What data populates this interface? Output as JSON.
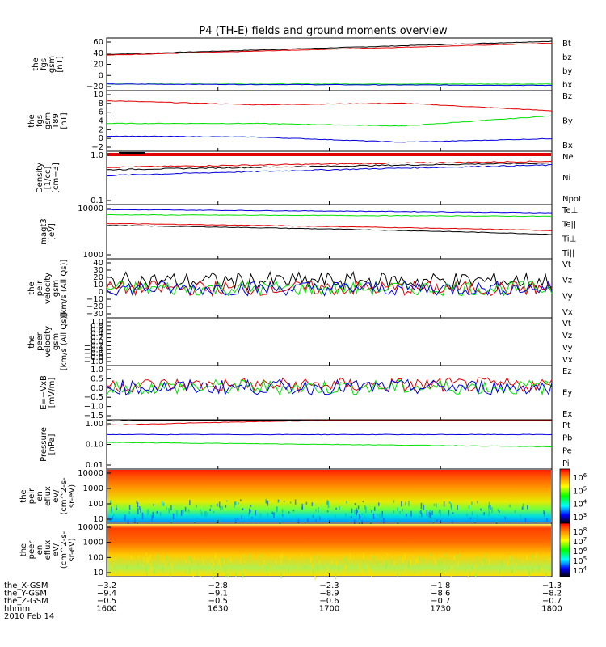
{
  "title": "P4 (TH-E) fields and ground moments overview",
  "colors": {
    "black": "#000000",
    "red": "#e00000",
    "green": "#00e000",
    "blue": "#0000dd"
  },
  "panels": [
    {
      "id": "fgs",
      "ylabel": [
        "the",
        "fgs",
        "gsm",
        "[nT]"
      ],
      "yticks": [
        "60",
        "40",
        "20",
        "0",
        "−20"
      ],
      "legend": [
        {
          "label": "Bt",
          "color": "#000000"
        },
        {
          "label": "bz",
          "color": "#e00000"
        },
        {
          "label": "by",
          "color": "#00e000"
        },
        {
          "label": "bx",
          "color": "#0000dd"
        }
      ]
    },
    {
      "id": "t89",
      "ylabel": [
        "the",
        "fgs",
        "gsm",
        "T89",
        "[nT]"
      ],
      "yticks": [
        "10",
        "8",
        "6",
        "4",
        "2",
        "0",
        "−2"
      ],
      "legend": [
        {
          "label": "Bz",
          "color": "#e00000"
        },
        {
          "label": "By",
          "color": "#00e000"
        },
        {
          "label": "Bx",
          "color": "#0000dd"
        }
      ]
    },
    {
      "id": "density",
      "ylabel": [
        "Density",
        "[1/cc]",
        "[cm−3]"
      ],
      "yticks": [
        "1.0",
        "0.1"
      ],
      "legend": [
        {
          "label": "Ne",
          "color": "#e00000"
        },
        {
          "label": "Ni",
          "color": "#000000"
        },
        {
          "label": "Npot",
          "color": "#0000dd"
        }
      ]
    },
    {
      "id": "temp",
      "ylabel": [
        "magt3",
        "[eV]"
      ],
      "yticks": [
        "10000",
        "1000"
      ],
      "legend": [
        {
          "label": "Te⊥",
          "color": "#e00000"
        },
        {
          "label": "Te||",
          "color": "#000000"
        },
        {
          "label": "Ti⊥",
          "color": "#0000dd"
        },
        {
          "label": "Ti||",
          "color": "#00e000"
        }
      ]
    },
    {
      "id": "peir_vel",
      "ylabel": [
        "the",
        "peir",
        "velocity",
        "gsm",
        "[km/s (All Qs)]"
      ],
      "yticks": [
        "40",
        "30",
        "20",
        "10",
        "0",
        "−10",
        "−20",
        "−30"
      ],
      "legend": [
        {
          "label": "Vt",
          "color": "#000000"
        },
        {
          "label": "Vz",
          "color": "#e00000"
        },
        {
          "label": "Vy",
          "color": "#00e000"
        },
        {
          "label": "Vx",
          "color": "#0000dd"
        }
      ]
    },
    {
      "id": "peer_vel",
      "ylabel": [
        "the",
        "peer",
        "velocity",
        "gsm",
        "[km/s (All Qs)]"
      ],
      "yticks": [
        "1.0",
        "0.8",
        "0.6",
        "0.4",
        "0.2",
        "0.0",
        "−0.2",
        "−0.4",
        "−0.6",
        "−0.8",
        "−1.0"
      ],
      "legend": [
        {
          "label": "Vt",
          "color": "#000000"
        },
        {
          "label": "Vz",
          "color": "#e00000"
        },
        {
          "label": "Vy",
          "color": "#00e000"
        },
        {
          "label": "Vx",
          "color": "#0000dd"
        }
      ]
    },
    {
      "id": "efield",
      "ylabel": [
        "E=−VxB",
        "[mV/m]"
      ],
      "yticks": [
        "1.0",
        "0.5",
        "0.0",
        "−0.5",
        "−1.0",
        "−1.5"
      ],
      "legend": [
        {
          "label": "Ez",
          "color": "#e00000"
        },
        {
          "label": "Ey",
          "color": "#00e000"
        },
        {
          "label": "Ex",
          "color": "#0000dd"
        }
      ]
    },
    {
      "id": "pressure",
      "ylabel": [
        "Pressure",
        "[nPa]"
      ],
      "yticks": [
        "1.00",
        "0.10",
        "0.01"
      ],
      "legend": [
        {
          "label": "Pt",
          "color": "#000000"
        },
        {
          "label": "Pb",
          "color": "#e00000"
        },
        {
          "label": "Pe",
          "color": "#00e000"
        },
        {
          "label": "Pi",
          "color": "#0000dd"
        }
      ]
    },
    {
      "id": "peir_eflux",
      "ylabel": [
        "the",
        "peir",
        "en",
        "eflux",
        "eV/",
        "(cm^2-s-",
        "sr-eV)"
      ],
      "yticks": [
        "10000",
        "1000",
        "100",
        "10"
      ],
      "colorbar": [
        "10^6",
        "10^5",
        "10^4",
        "10^3"
      ]
    },
    {
      "id": "peer_eflux",
      "ylabel": [
        "the",
        "peer",
        "en",
        "eflux",
        "eV/",
        "(cm^2-s-",
        "sr-eV)"
      ],
      "yticks": [
        "10000",
        "1000",
        "100",
        "10"
      ],
      "colorbar": [
        "10^8",
        "10^7",
        "10^6",
        "10^5",
        "10^4"
      ]
    }
  ],
  "xaxis": {
    "row_labels": [
      "the_X-GSM",
      "the_Y-GSM",
      "the_Z-GSM",
      "hhmm",
      "2010 Feb 14"
    ],
    "columns": [
      {
        "x": "−3.2",
        "y": "−9.4",
        "z": "−0.5",
        "time": "1600"
      },
      {
        "x": "−2.8",
        "y": "−9.1",
        "z": "−0.5",
        "time": "1630"
      },
      {
        "x": "−2.3",
        "y": "−8.9",
        "z": "−0.6",
        "time": "1700"
      },
      {
        "x": "−1.8",
        "y": "−8.6",
        "z": "−0.7",
        "time": "1730"
      },
      {
        "x": "−1.3",
        "y": "−8.2",
        "z": "−0.7",
        "time": "1800"
      }
    ]
  },
  "chart_data": [
    {
      "type": "line",
      "x_time": [
        "1600",
        "1800"
      ],
      "ylim": [
        -20,
        60
      ],
      "series": [
        {
          "name": "Bt",
          "values": [
            35,
            55
          ]
        },
        {
          "name": "bz",
          "values": [
            34,
            52
          ]
        },
        {
          "name": "by",
          "values": [
            -10,
            -10
          ]
        },
        {
          "name": "bx",
          "values": [
            -10,
            -12
          ]
        }
      ]
    },
    {
      "type": "line",
      "x_time": [
        "1600",
        "1700",
        "1730",
        "1800"
      ],
      "ylim": [
        -2,
        10
      ],
      "series": [
        {
          "name": "Bz",
          "values": [
            8,
            7.2,
            7.5,
            6
          ]
        },
        {
          "name": "By",
          "values": [
            3.5,
            3.5,
            3.0,
            5
          ]
        },
        {
          "name": "Bx",
          "values": [
            1,
            0.8,
            -0.2,
            0.5
          ]
        }
      ]
    },
    {
      "type": "line",
      "scale": "log",
      "x_time": [
        "1600",
        "1800"
      ],
      "ylim": [
        0.1,
        1.0
      ],
      "series": [
        {
          "name": "Ne",
          "values": [
            0.5,
            0.65
          ]
        },
        {
          "name": "Ni",
          "values": [
            0.45,
            0.6
          ]
        },
        {
          "name": "Npot",
          "values": [
            0.35,
            0.55
          ]
        }
      ]
    },
    {
      "type": "line",
      "scale": "log",
      "x_time": [
        "1600",
        "1800"
      ],
      "ylim": [
        100,
        10000
      ],
      "series": [
        {
          "name": "Te⊥",
          "values": [
            2000,
            1100
          ]
        },
        {
          "name": "Te||",
          "values": [
            1700,
            800
          ]
        },
        {
          "name": "Ti⊥",
          "values": [
            6500,
            5000
          ]
        },
        {
          "name": "Ti||",
          "values": [
            4200,
            3700
          ]
        }
      ]
    },
    {
      "type": "line",
      "x_time": [
        "1600",
        "1800"
      ],
      "ylim": [
        -40,
        40
      ],
      "series": [
        {
          "name": "Vt",
          "values": [
            10,
            10
          ]
        },
        {
          "name": "Vz",
          "values": [
            0,
            0
          ]
        },
        {
          "name": "Vy",
          "values": [
            0,
            0
          ]
        },
        {
          "name": "Vx",
          "values": [
            0,
            0
          ]
        }
      ]
    },
    {
      "type": "line",
      "x_time": [
        "1600",
        "1800"
      ],
      "ylim": [
        -1.0,
        1.0
      ],
      "series": []
    },
    {
      "type": "line",
      "x_time": [
        "1600",
        "1800"
      ],
      "ylim": [
        -1.5,
        1.0
      ],
      "series": [
        {
          "name": "Ez",
          "values": [
            0.1,
            0.1
          ]
        },
        {
          "name": "Ey",
          "values": [
            0.0,
            0.0
          ]
        },
        {
          "name": "Ex",
          "values": [
            0.0,
            0.0
          ]
        }
      ]
    },
    {
      "type": "line",
      "scale": "log",
      "x_time": [
        "1600",
        "1800"
      ],
      "ylim": [
        0.01,
        1.0
      ],
      "series": [
        {
          "name": "Pt",
          "values": [
            0.9,
            1.5
          ]
        },
        {
          "name": "Pb",
          "values": [
            0.6,
            1.3
          ]
        },
        {
          "name": "Pe",
          "values": [
            0.12,
            0.08
          ]
        },
        {
          "name": "Pi",
          "values": [
            0.25,
            0.25
          ]
        }
      ]
    },
    {
      "type": "heatmap",
      "x_time": [
        "1600",
        "1800"
      ],
      "ylim": [
        5,
        25000
      ],
      "colorbar": [
        "10^3",
        "10^6"
      ]
    },
    {
      "type": "heatmap",
      "x_time": [
        "1600",
        "1800"
      ],
      "ylim": [
        5,
        25000
      ],
      "colorbar": [
        "10^4",
        "10^8"
      ]
    }
  ]
}
